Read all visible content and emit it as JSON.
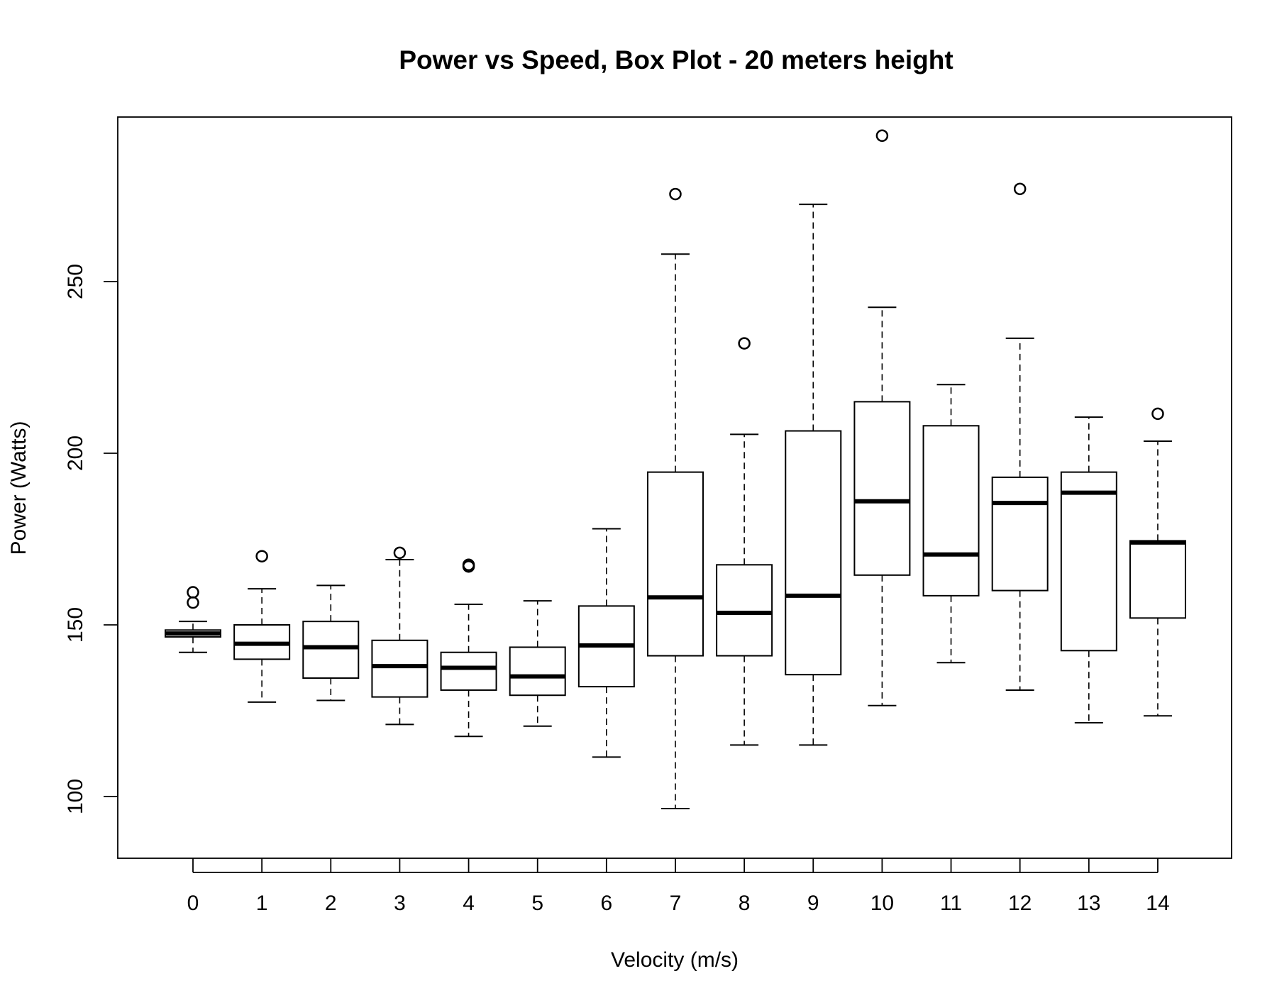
{
  "chart_data": {
    "type": "boxplot",
    "title": "Power vs Speed, Box Plot - 20 meters height",
    "xlabel": "Velocity (m/s)",
    "ylabel": "Power (Watts)",
    "ylim": [
      82,
      297
    ],
    "yticks": [
      100,
      150,
      200,
      250
    ],
    "categories": [
      "0",
      "1",
      "2",
      "3",
      "4",
      "5",
      "6",
      "7",
      "8",
      "9",
      "10",
      "11",
      "12",
      "13",
      "14"
    ],
    "grid": false,
    "legend": "none",
    "boxes": [
      {
        "category": "0",
        "whisker_low": 142,
        "q1": 146.5,
        "median": 147.5,
        "q3": 148.5,
        "whisker_high": 151,
        "outliers": [
          156.5,
          159.5
        ]
      },
      {
        "category": "1",
        "whisker_low": 127.5,
        "q1": 140,
        "median": 144.5,
        "q3": 150,
        "whisker_high": 160.5,
        "outliers": [
          170
        ]
      },
      {
        "category": "2",
        "whisker_low": 128,
        "q1": 134.5,
        "median": 143.5,
        "q3": 151,
        "whisker_high": 161.5,
        "outliers": []
      },
      {
        "category": "3",
        "whisker_low": 121,
        "q1": 129,
        "median": 138,
        "q3": 145.5,
        "whisker_high": 169,
        "outliers": [
          171
        ]
      },
      {
        "category": "4",
        "whisker_low": 117.5,
        "q1": 131,
        "median": 137.5,
        "q3": 142,
        "whisker_high": 156,
        "outliers": [
          167,
          167.5
        ]
      },
      {
        "category": "5",
        "whisker_low": 120.5,
        "q1": 129.5,
        "median": 135,
        "q3": 143.5,
        "whisker_high": 157,
        "outliers": []
      },
      {
        "category": "6",
        "whisker_low": 111.5,
        "q1": 132,
        "median": 144,
        "q3": 155.5,
        "whisker_high": 178,
        "outliers": []
      },
      {
        "category": "7",
        "whisker_low": 96.5,
        "q1": 141,
        "median": 158,
        "q3": 194.5,
        "whisker_high": 258,
        "outliers": [
          275.5
        ]
      },
      {
        "category": "8",
        "whisker_low": 115,
        "q1": 141,
        "median": 153.5,
        "q3": 167.5,
        "whisker_high": 205.5,
        "outliers": [
          232
        ]
      },
      {
        "category": "9",
        "whisker_low": 115,
        "q1": 135.5,
        "median": 158.5,
        "q3": 206.5,
        "whisker_high": 272.5,
        "outliers": []
      },
      {
        "category": "10",
        "whisker_low": 126.5,
        "q1": 164.5,
        "median": 186,
        "q3": 215,
        "whisker_high": 242.5,
        "outliers": [
          292.5
        ]
      },
      {
        "category": "11",
        "whisker_low": 139,
        "q1": 158.5,
        "median": 170.5,
        "q3": 208,
        "whisker_high": 220,
        "outliers": []
      },
      {
        "category": "12",
        "whisker_low": 131,
        "q1": 160,
        "median": 185.5,
        "q3": 193,
        "whisker_high": 233.5,
        "outliers": [
          277
        ]
      },
      {
        "category": "13",
        "whisker_low": 121.5,
        "q1": 142.5,
        "median": 188.5,
        "q3": 194.5,
        "whisker_high": 210.5,
        "outliers": []
      },
      {
        "category": "14",
        "whisker_low": 123.5,
        "q1": 152,
        "median": 174,
        "q3": 174.5,
        "whisker_high": 203.5,
        "outliers": [
          211.5
        ]
      }
    ]
  }
}
